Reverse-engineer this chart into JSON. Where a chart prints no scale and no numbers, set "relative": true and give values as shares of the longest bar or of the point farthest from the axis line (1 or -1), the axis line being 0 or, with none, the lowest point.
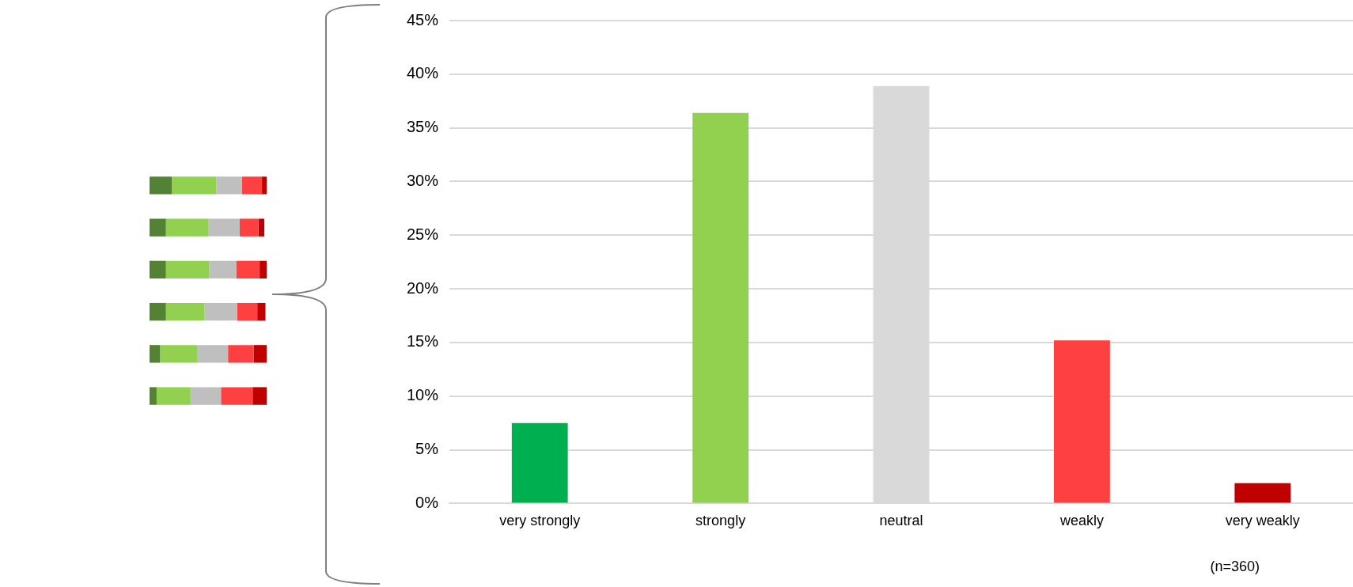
{
  "chart_data": [
    {
      "type": "bar",
      "orientation": "horizontal",
      "stacked": true,
      "relative": true,
      "categories": [
        null,
        null,
        null,
        null,
        null,
        null
      ],
      "series": [
        {
          "color": "#548235",
          "values": [
            0.19,
            0.14,
            0.14,
            0.14,
            0.09,
            0.06
          ]
        },
        {
          "color": "#92d050",
          "values": [
            0.38,
            0.36,
            0.37,
            0.33,
            0.32,
            0.29
          ]
        },
        {
          "color": "#bfbfbf",
          "values": [
            0.22,
            0.27,
            0.23,
            0.28,
            0.26,
            0.26
          ]
        },
        {
          "color": "#ff4040",
          "values": [
            0.17,
            0.16,
            0.2,
            0.17,
            0.22,
            0.27
          ]
        },
        {
          "color": "#c00000",
          "values": [
            0.04,
            0.05,
            0.06,
            0.07,
            0.11,
            0.12
          ]
        }
      ]
    },
    {
      "type": "bar",
      "categories": [
        "very strongly",
        "strongly",
        "neutral",
        "weakly",
        "very weakly"
      ],
      "values": [
        7.5,
        36.4,
        38.9,
        15.2,
        1.9
      ],
      "colors": [
        "#00b050",
        "#92d050",
        "#d9d9d9",
        "#ff4040",
        "#c00000"
      ],
      "ylim": [
        0,
        45
      ],
      "yticks": [
        {
          "value": 0,
          "label": "0%"
        },
        {
          "value": 5,
          "label": "5%"
        },
        {
          "value": 10,
          "label": "10%"
        },
        {
          "value": 15,
          "label": "15%"
        },
        {
          "value": 20,
          "label": "20%"
        },
        {
          "value": 25,
          "label": "25%"
        },
        {
          "value": 30,
          "label": "30%"
        },
        {
          "value": 35,
          "label": "35%"
        },
        {
          "value": 40,
          "label": "40%"
        },
        {
          "value": 45,
          "label": "45%"
        }
      ],
      "grid": "y",
      "legend": false,
      "annotations": [
        "(n=360)"
      ]
    }
  ]
}
